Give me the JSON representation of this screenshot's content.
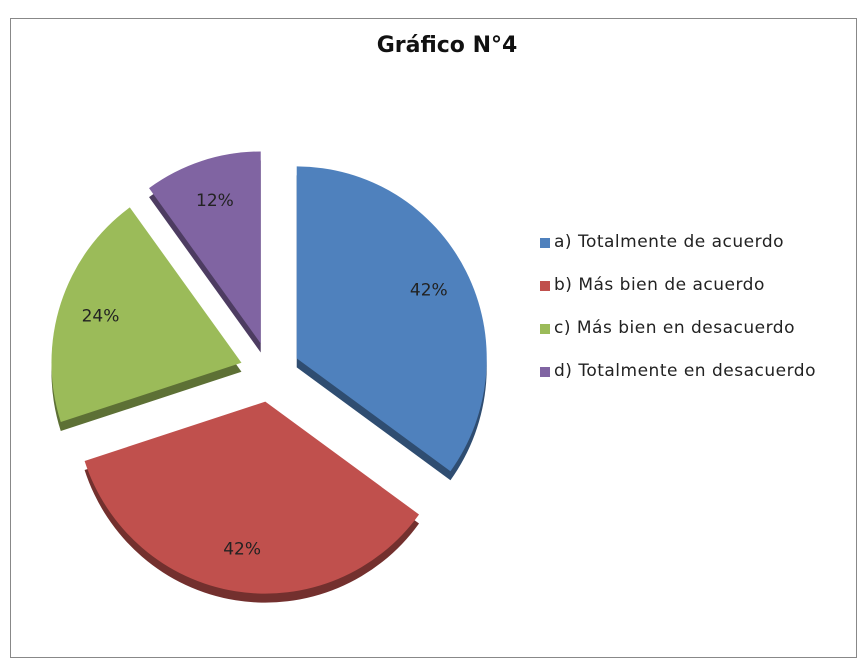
{
  "chart_data": {
    "type": "pie",
    "title": "Gráfico N°4",
    "categories": [
      "a) Totalmente de acuerdo",
      "b) Más bien de acuerdo",
      "c) Más bien en desacuerdo",
      "d) Totalmente en desacuerdo"
    ],
    "values": [
      42,
      42,
      24,
      12
    ],
    "value_labels": [
      "42%",
      "42%",
      "24%",
      "12%"
    ],
    "colors": [
      "#4f81bd",
      "#c0504d",
      "#9bbb59",
      "#8064a2"
    ],
    "legend": "right"
  }
}
